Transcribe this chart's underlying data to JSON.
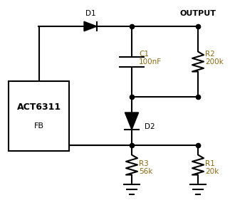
{
  "bg_color": "#ffffff",
  "line_color": "#000000",
  "text_color": "#000000",
  "label_color": "#8B6914",
  "figsize": [
    3.3,
    3.09
  ],
  "dpi": 100,
  "ic_label": "ACT6311",
  "ic_sublabel": "FB",
  "output_label": "OUTPUT",
  "d1_label": "D1",
  "d2_label": "D2",
  "c1_label": "C1\n100nF",
  "r1_label": "R1\n20k",
  "r2_label": "R2\n200k",
  "r3_label": "R3\n56k"
}
